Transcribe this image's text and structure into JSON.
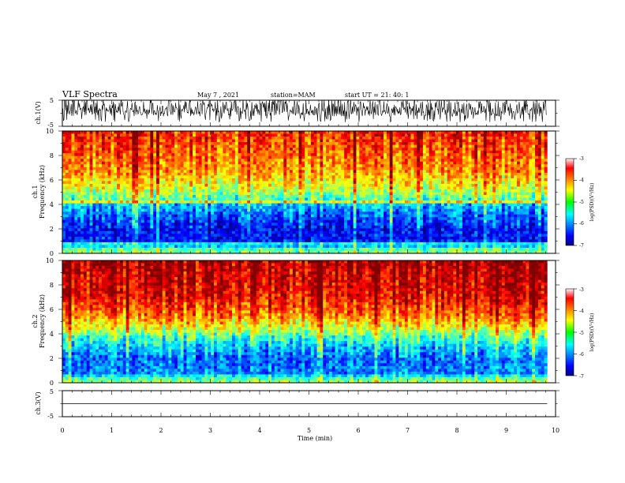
{
  "header": {
    "title": "VLF Spectra",
    "date": "May 7  , 2021",
    "station": "station=MAM",
    "start_ut": "start  UT  =   21: 40: 1"
  },
  "chart_data": [
    {
      "id": "ch1-waveform",
      "type": "line",
      "ylabel": "ch.1(V)",
      "ylim": [
        -5,
        5
      ],
      "yticks": [
        "5",
        "-5"
      ],
      "xlim": [
        0,
        10
      ],
      "data_extent_min": [
        0,
        9.83
      ],
      "signal": "dense noisy waveform, mostly between -2 and +4 V, frequent spikes to +5 V"
    },
    {
      "id": "ch1-spectrogram",
      "type": "heatmap",
      "ylabel": "ch.1",
      "ylabel2": "Frequency  (kHz)",
      "ylim": [
        0,
        10
      ],
      "yticks": [
        "0",
        "2",
        "4",
        "6",
        "8",
        "10"
      ],
      "xlim": [
        0,
        10
      ],
      "colorbar": {
        "label": "log(PSD)(V²/Hz)",
        "range": [
          -7,
          -3
        ],
        "ticks": [
          "-3",
          "-4",
          "-5",
          "-6",
          "-7"
        ],
        "colormap": "jet"
      },
      "profile": [
        {
          "f": 0.0,
          "v": -5.0
        },
        {
          "f": 0.4,
          "v": -5.2
        },
        {
          "f": 0.8,
          "v": -6.4
        },
        {
          "f": 2.0,
          "v": -6.5
        },
        {
          "f": 3.2,
          "v": -6.1
        },
        {
          "f": 4.0,
          "v": -5.7
        },
        {
          "f": 4.4,
          "v": -5.2
        },
        {
          "f": 5.2,
          "v": -4.7
        },
        {
          "f": 6.5,
          "v": -4.2
        },
        {
          "f": 8.0,
          "v": -3.9
        },
        {
          "f": 10.0,
          "v": -3.6
        }
      ]
    },
    {
      "id": "ch2-spectrogram",
      "type": "heatmap",
      "ylabel": "ch.2",
      "ylabel2": "Frequency  (kHz)",
      "ylim": [
        0,
        10
      ],
      "yticks": [
        "0",
        "2",
        "4",
        "6",
        "8",
        "10"
      ],
      "xlim": [
        0,
        10
      ],
      "colorbar": {
        "label": "log(PSD)(V²/Hz)",
        "range": [
          -7,
          -3
        ],
        "ticks": [
          "-3",
          "-4",
          "-5",
          "-6",
          "-7"
        ],
        "colormap": "jet"
      },
      "profile": [
        {
          "f": 0.0,
          "v": -4.8
        },
        {
          "f": 0.4,
          "v": -5.3
        },
        {
          "f": 0.8,
          "v": -6.0
        },
        {
          "f": 2.0,
          "v": -6.1
        },
        {
          "f": 3.0,
          "v": -5.7
        },
        {
          "f": 3.8,
          "v": -5.2
        },
        {
          "f": 4.5,
          "v": -4.6
        },
        {
          "f": 5.5,
          "v": -4.0
        },
        {
          "f": 7.0,
          "v": -3.5
        },
        {
          "f": 10.0,
          "v": -3.2
        }
      ]
    },
    {
      "id": "ch3-waveform",
      "type": "line",
      "ylabel": "ch.3(V)",
      "ylim": [
        -5,
        5
      ],
      "yticks": [
        "5",
        "-5"
      ],
      "xlim": [
        0,
        10
      ],
      "data_extent_min": [
        0,
        9.83
      ],
      "constant_value": 0,
      "xlabel": "Time  (min)",
      "xticks": [
        "0",
        "1",
        "2",
        "3",
        "4",
        "5",
        "6",
        "7",
        "8",
        "9",
        "10"
      ]
    }
  ]
}
